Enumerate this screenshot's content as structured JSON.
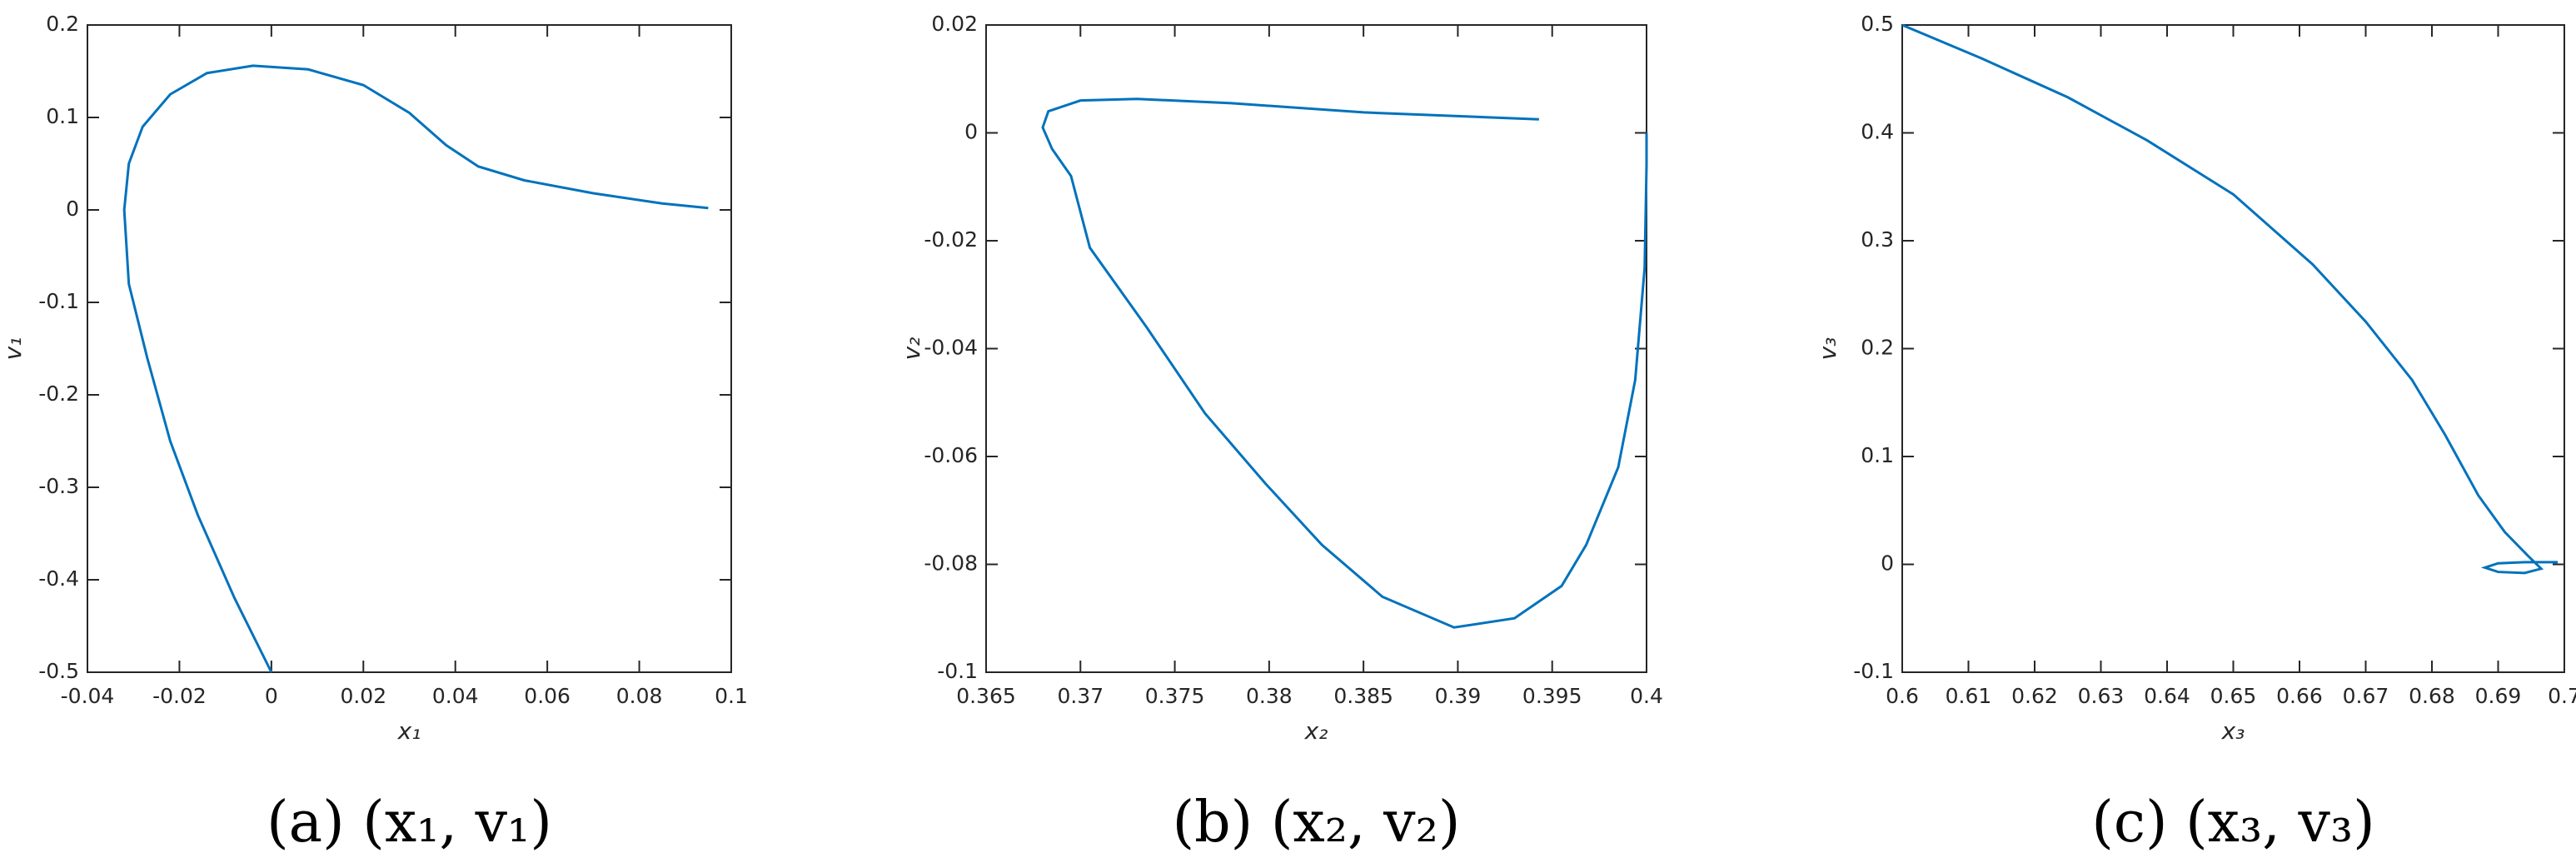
{
  "chart_data": [
    {
      "type": "line",
      "caption": "(a) (x₁, v₁)",
      "xlabel": "x₁",
      "ylabel": "v₁",
      "color": "#0072bd",
      "xlim": [
        -0.04,
        0.1
      ],
      "ylim": [
        -0.5,
        0.2
      ],
      "xticks": [
        -0.04,
        -0.02,
        0,
        0.02,
        0.04,
        0.06,
        0.08,
        0.1
      ],
      "yticks": [
        -0.5,
        -0.4,
        -0.3,
        -0.2,
        -0.1,
        0,
        0.1,
        0.2
      ],
      "x": [
        0,
        -0.008,
        -0.016,
        -0.022,
        -0.027,
        -0.031,
        -0.032,
        -0.031,
        -0.028,
        -0.022,
        -0.014,
        -0.004,
        0.008,
        0.02,
        0.03,
        0.038,
        0.045,
        0.055,
        0.07,
        0.085,
        0.095
      ],
      "values": [
        -0.5,
        -0.42,
        -0.33,
        -0.25,
        -0.16,
        -0.08,
        0,
        0.05,
        0.09,
        0.125,
        0.148,
        0.156,
        0.152,
        0.135,
        0.105,
        0.07,
        0.047,
        0.032,
        0.018,
        0.007,
        0.002
      ]
    },
    {
      "type": "line",
      "caption": "(b) (x₂, v₂)",
      "xlabel": "x₂",
      "ylabel": "v₂",
      "color": "#0072bd",
      "xlim": [
        0.365,
        0.4
      ],
      "ylim": [
        -0.1,
        0.02
      ],
      "xticks": [
        0.365,
        0.37,
        0.375,
        0.38,
        0.385,
        0.39,
        0.395,
        0.4
      ],
      "yticks": [
        -0.1,
        -0.08,
        -0.06,
        -0.04,
        -0.02,
        0,
        0.02
      ],
      "x": [
        0.3943,
        0.385,
        0.378,
        0.373,
        0.37,
        0.3683,
        0.368,
        0.3685,
        0.3695,
        0.3705,
        0.3735,
        0.3766,
        0.3798,
        0.3828,
        0.386,
        0.3898,
        0.393,
        0.3955,
        0.3968,
        0.3985,
        0.3994,
        0.3999,
        0.4,
        0.4
      ],
      "values": [
        0.0025,
        0.0038,
        0.0055,
        0.0063,
        0.006,
        0.004,
        0.001,
        -0.003,
        -0.008,
        -0.0213,
        -0.036,
        -0.052,
        -0.065,
        -0.0764,
        -0.086,
        -0.0917,
        -0.09,
        -0.084,
        -0.0764,
        -0.062,
        -0.0458,
        -0.025,
        -0.006,
        0
      ]
    },
    {
      "type": "line",
      "caption": "(c) (x₃, v₃)",
      "xlabel": "x₃",
      "ylabel": "v₃",
      "color": "#0072bd",
      "xlim": [
        0.6,
        0.7
      ],
      "ylim": [
        -0.1,
        0.5
      ],
      "xticks": [
        0.6,
        0.61,
        0.62,
        0.63,
        0.64,
        0.65,
        0.66,
        0.67,
        0.68,
        0.69,
        0.7
      ],
      "yticks": [
        -0.1,
        0,
        0.1,
        0.2,
        0.3,
        0.4,
        0.5
      ],
      "x": [
        0.6,
        0.612,
        0.625,
        0.637,
        0.65,
        0.662,
        0.67,
        0.677,
        0.682,
        0.687,
        0.691,
        0.6945,
        0.6965,
        0.694,
        0.69,
        0.688,
        0.69,
        0.694,
        0.699
      ],
      "values": [
        0.5,
        0.469,
        0.433,
        0.393,
        0.343,
        0.278,
        0.225,
        0.171,
        0.12,
        0.064,
        0.03,
        0.008,
        -0.004,
        -0.008,
        -0.007,
        -0.003,
        0.001,
        0.002,
        0.002
      ]
    }
  ]
}
